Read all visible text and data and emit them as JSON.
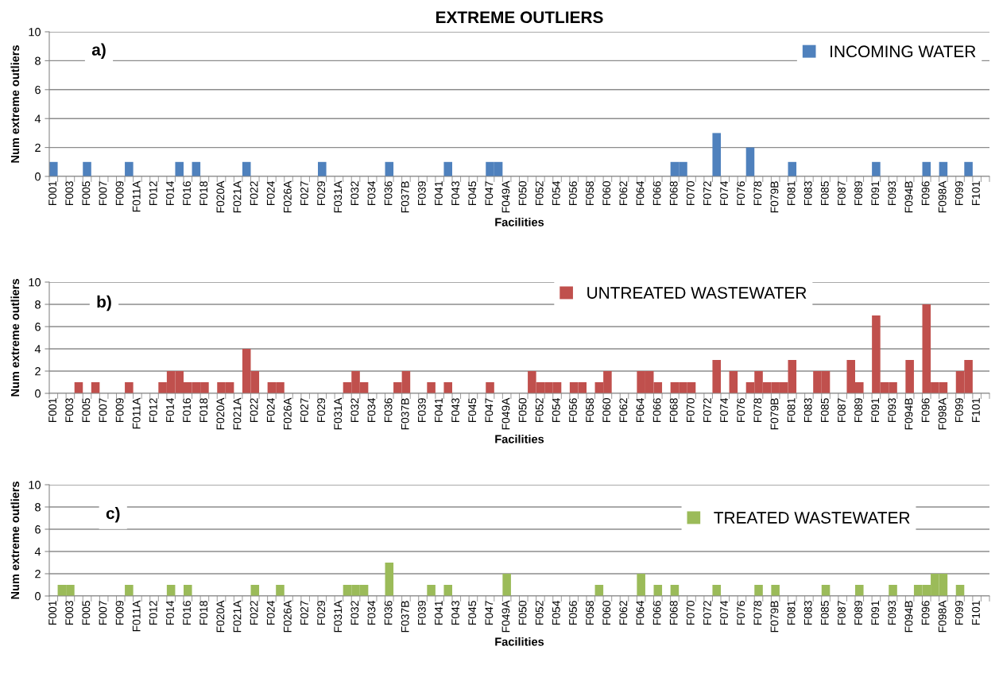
{
  "chart_data": [
    {
      "type": "bar",
      "title": "EXTREME OUTLIERS",
      "xlabel": "Facilities",
      "ylabel": "Num extreme outliers",
      "annotations": [
        "a)"
      ],
      "categories": [
        "F001",
        null,
        "F003",
        null,
        "F005",
        null,
        "F007",
        null,
        "F009",
        null,
        "F011A",
        null,
        "F012",
        null,
        "F014",
        null,
        "F016",
        null,
        "F018",
        null,
        "F020A",
        null,
        "F021A",
        null,
        "F022",
        null,
        "F024",
        null,
        "F026A",
        null,
        "F027",
        null,
        "F029",
        null,
        "F031A",
        null,
        "F032",
        null,
        "F034",
        null,
        "F036",
        null,
        "F037B",
        null,
        "F039",
        null,
        "F041",
        null,
        "F043",
        null,
        "F045",
        null,
        "F047",
        null,
        "F049A",
        null,
        "F050",
        null,
        "F052",
        null,
        "F054",
        null,
        "F056",
        null,
        "F058",
        null,
        "F060",
        null,
        "F062",
        null,
        "F064",
        null,
        "F066",
        null,
        "F068",
        null,
        "F070",
        null,
        "F072",
        null,
        "F074",
        null,
        "F076",
        null,
        "F078",
        null,
        "F079B",
        null,
        "F081",
        null,
        "F083",
        null,
        "F085",
        null,
        "F087",
        null,
        "F089",
        null,
        "F091",
        null,
        "F093",
        null,
        "F094B",
        null,
        "F096",
        null,
        "F098A",
        null,
        "F099",
        null,
        "F101",
        null
      ],
      "series": [
        {
          "name": "INCOMING WATER",
          "color": "#4f81bd",
          "values": [
            1,
            0,
            0,
            0,
            1,
            0,
            0,
            0,
            0,
            1,
            0,
            0,
            0,
            0,
            0,
            1,
            0,
            1,
            0,
            0,
            0,
            0,
            0,
            1,
            0,
            0,
            0,
            0,
            0,
            0,
            0,
            0,
            1,
            0,
            0,
            0,
            0,
            0,
            0,
            0,
            1,
            0,
            0,
            0,
            0,
            0,
            0,
            1,
            0,
            0,
            0,
            0,
            1,
            1,
            0,
            0,
            0,
            0,
            0,
            0,
            0,
            0,
            0,
            0,
            0,
            0,
            0,
            0,
            0,
            0,
            0,
            0,
            0,
            0,
            1,
            1,
            0,
            0,
            0,
            3,
            0,
            0,
            0,
            2,
            0,
            0,
            0,
            0,
            1,
            0,
            0,
            0,
            0,
            0,
            0,
            0,
            0,
            0,
            1,
            0,
            0,
            0,
            0,
            0,
            1,
            0,
            1,
            0,
            0,
            1,
            0,
            0
          ]
        }
      ],
      "ylim": [
        0,
        10
      ],
      "yticks": [
        0,
        2,
        4,
        6,
        8,
        10
      ],
      "grid": "y",
      "legend": "top right"
    },
    {
      "type": "bar",
      "xlabel": "Facilities",
      "ylabel": "Num extreme outliers",
      "annotations": [
        "b)"
      ],
      "categories": [
        "F001",
        null,
        "F003",
        null,
        "F005",
        null,
        "F007",
        null,
        "F009",
        null,
        "F011A",
        null,
        "F012",
        null,
        "F014",
        null,
        "F016",
        null,
        "F018",
        null,
        "F020A",
        null,
        "F021A",
        null,
        "F022",
        null,
        "F024",
        null,
        "F026A",
        null,
        "F027",
        null,
        "F029",
        null,
        "F031A",
        null,
        "F032",
        null,
        "F034",
        null,
        "F036",
        null,
        "F037B",
        null,
        "F039",
        null,
        "F041",
        null,
        "F043",
        null,
        "F045",
        null,
        "F047",
        null,
        "F049A",
        null,
        "F050",
        null,
        "F052",
        null,
        "F054",
        null,
        "F056",
        null,
        "F058",
        null,
        "F060",
        null,
        "F062",
        null,
        "F064",
        null,
        "F066",
        null,
        "F068",
        null,
        "F070",
        null,
        "F072",
        null,
        "F074",
        null,
        "F076",
        null,
        "F078",
        null,
        "F079B",
        null,
        "F081",
        null,
        "F083",
        null,
        "F085",
        null,
        "F087",
        null,
        "F089",
        null,
        "F091",
        null,
        "F093",
        null,
        "F094B",
        null,
        "F096",
        null,
        "F098A",
        null,
        "F099",
        null,
        "F101",
        null
      ],
      "series": [
        {
          "name": "UNTREATED WASTEWATER",
          "color": "#c0504d",
          "values": [
            0,
            0,
            0,
            1,
            0,
            1,
            0,
            0,
            0,
            1,
            0,
            0,
            0,
            1,
            2,
            2,
            1,
            1,
            1,
            0,
            1,
            1,
            0,
            4,
            2,
            0,
            1,
            1,
            0,
            0,
            0,
            0,
            0,
            0,
            0,
            1,
            2,
            1,
            0,
            0,
            0,
            1,
            2,
            0,
            0,
            1,
            0,
            1,
            0,
            0,
            0,
            0,
            1,
            0,
            0,
            0,
            0,
            2,
            1,
            1,
            1,
            0,
            1,
            1,
            0,
            1,
            2,
            0,
            0,
            0,
            2,
            2,
            1,
            0,
            1,
            1,
            1,
            0,
            0,
            3,
            0,
            2,
            0,
            1,
            2,
            1,
            1,
            1,
            3,
            0,
            0,
            2,
            2,
            0,
            0,
            3,
            1,
            0,
            7,
            1,
            1,
            0,
            3,
            0,
            8,
            1,
            1,
            0,
            2,
            3,
            0,
            0
          ]
        }
      ],
      "ylim": [
        0,
        10
      ],
      "yticks": [
        0,
        2,
        4,
        6,
        8,
        10
      ],
      "grid": "y",
      "legend": "top right"
    },
    {
      "type": "bar",
      "xlabel": "Facilities",
      "ylabel": "Num extreme outliers",
      "annotations": [
        "c)"
      ],
      "categories": [
        "F001",
        null,
        "F003",
        null,
        "F005",
        null,
        "F007",
        null,
        "F009",
        null,
        "F011A",
        null,
        "F012",
        null,
        "F014",
        null,
        "F016",
        null,
        "F018",
        null,
        "F020A",
        null,
        "F021A",
        null,
        "F022",
        null,
        "F024",
        null,
        "F026A",
        null,
        "F027",
        null,
        "F029",
        null,
        "F031A",
        null,
        "F032",
        null,
        "F034",
        null,
        "F036",
        null,
        "F037B",
        null,
        "F039",
        null,
        "F041",
        null,
        "F043",
        null,
        "F045",
        null,
        "F047",
        null,
        "F049A",
        null,
        "F050",
        null,
        "F052",
        null,
        "F054",
        null,
        "F056",
        null,
        "F058",
        null,
        "F060",
        null,
        "F062",
        null,
        "F064",
        null,
        "F066",
        null,
        "F068",
        null,
        "F070",
        null,
        "F072",
        null,
        "F074",
        null,
        "F076",
        null,
        "F078",
        null,
        "F079B",
        null,
        "F081",
        null,
        "F083",
        null,
        "F085",
        null,
        "F087",
        null,
        "F089",
        null,
        "F091",
        null,
        "F093",
        null,
        "F094B",
        null,
        "F096",
        null,
        "F098A",
        null,
        "F099",
        null,
        "F101",
        null
      ],
      "series": [
        {
          "name": "TREATED WASTEWATER",
          "color": "#9bbb59",
          "values": [
            0,
            1,
            1,
            0,
            0,
            0,
            0,
            0,
            0,
            1,
            0,
            0,
            0,
            0,
            1,
            0,
            1,
            0,
            0,
            0,
            0,
            0,
            0,
            0,
            1,
            0,
            0,
            1,
            0,
            0,
            0,
            0,
            0,
            0,
            0,
            1,
            1,
            1,
            0,
            0,
            3,
            0,
            0,
            0,
            0,
            1,
            0,
            1,
            0,
            0,
            0,
            0,
            0,
            0,
            2,
            0,
            0,
            0,
            0,
            0,
            0,
            0,
            0,
            0,
            0,
            1,
            0,
            0,
            0,
            0,
            2,
            0,
            1,
            0,
            1,
            0,
            0,
            0,
            0,
            1,
            0,
            0,
            0,
            0,
            1,
            0,
            1,
            0,
            0,
            0,
            0,
            0,
            1,
            0,
            0,
            0,
            1,
            0,
            0,
            0,
            1,
            0,
            0,
            1,
            1,
            2,
            2,
            0,
            1,
            0,
            0,
            0
          ]
        }
      ],
      "ylim": [
        0,
        10
      ],
      "yticks": [
        0,
        2,
        4,
        6,
        8,
        10
      ],
      "grid": "y",
      "legend": "top right"
    }
  ]
}
